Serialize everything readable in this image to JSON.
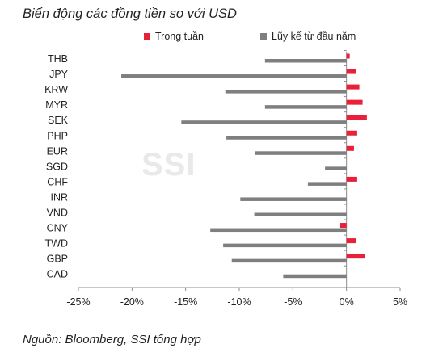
{
  "title": "Biến động các đồng tiền so với USD",
  "source": "Nguồn: Bloomberg, SSI tổng hợp",
  "watermark": "SSI",
  "colors": {
    "weekly": "#e8203a",
    "ytd": "#7f7f7f",
    "axis": "#8c8c8c"
  },
  "chart_data": {
    "type": "bar",
    "orientation": "horizontal",
    "title": "Biến động các đồng tiền so với USD",
    "categories": [
      "THB",
      "JPY",
      "KRW",
      "MYR",
      "SEK",
      "PHP",
      "EUR",
      "SGD",
      "CHF",
      "INR",
      "VND",
      "CNY",
      "TWD",
      "GBP",
      "CAD"
    ],
    "series": [
      {
        "name": "Trong tuần",
        "color": "#e8203a",
        "values": [
          0.3,
          0.9,
          1.2,
          1.5,
          1.9,
          1.0,
          0.7,
          0.0,
          1.0,
          0.0,
          0.0,
          -0.6,
          0.9,
          1.7,
          0.0
        ]
      },
      {
        "name": "Lũy kế từ đầu năm",
        "color": "#7f7f7f",
        "values": [
          -7.6,
          -21.0,
          -11.3,
          -7.6,
          -15.4,
          -11.2,
          -8.5,
          -2.0,
          -3.6,
          -9.9,
          -8.6,
          -12.7,
          -11.5,
          -10.7,
          -5.9
        ]
      }
    ],
    "xlim": [
      -25,
      5
    ],
    "xticks": [
      -25,
      -20,
      -15,
      -10,
      -5,
      0,
      5
    ],
    "xtick_labels": [
      "-25%",
      "-20%",
      "-15%",
      "-10%",
      "-5%",
      "0%",
      "5%"
    ],
    "legend_position": "top",
    "grid": false
  }
}
